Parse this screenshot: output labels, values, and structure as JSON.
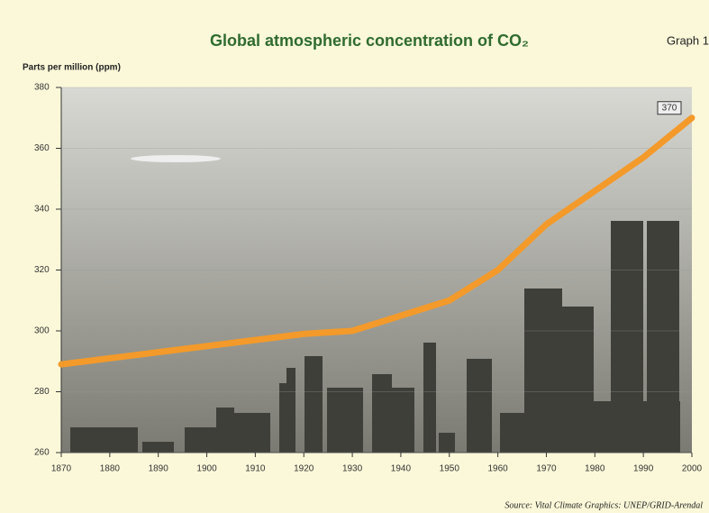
{
  "chart_data": {
    "type": "line",
    "title": "Global atmospheric concentration of CO₂",
    "subtitle": "Graph 1",
    "y_label": "Parts per million (ppm)",
    "source": "Source: Vital Climate Graphics: UNEP/GRID-Arendal",
    "x": [
      1870,
      1880,
      1890,
      1900,
      1910,
      1920,
      1930,
      1940,
      1950,
      1960,
      1970,
      1980,
      1990,
      2000
    ],
    "values": [
      289,
      291,
      293,
      295,
      297,
      299,
      300,
      305,
      310,
      320,
      335,
      346,
      357,
      370
    ],
    "color": "#f39a2a",
    "xlim": [
      1870,
      2000
    ],
    "xticks": [
      1870,
      1880,
      1890,
      1900,
      1910,
      1920,
      1930,
      1940,
      1950,
      1960,
      1970,
      1980,
      1990,
      2000
    ],
    "ylim": [
      260,
      380
    ],
    "yticks": [
      260,
      280,
      300,
      320,
      340,
      360,
      380
    ],
    "grid": true
  }
}
